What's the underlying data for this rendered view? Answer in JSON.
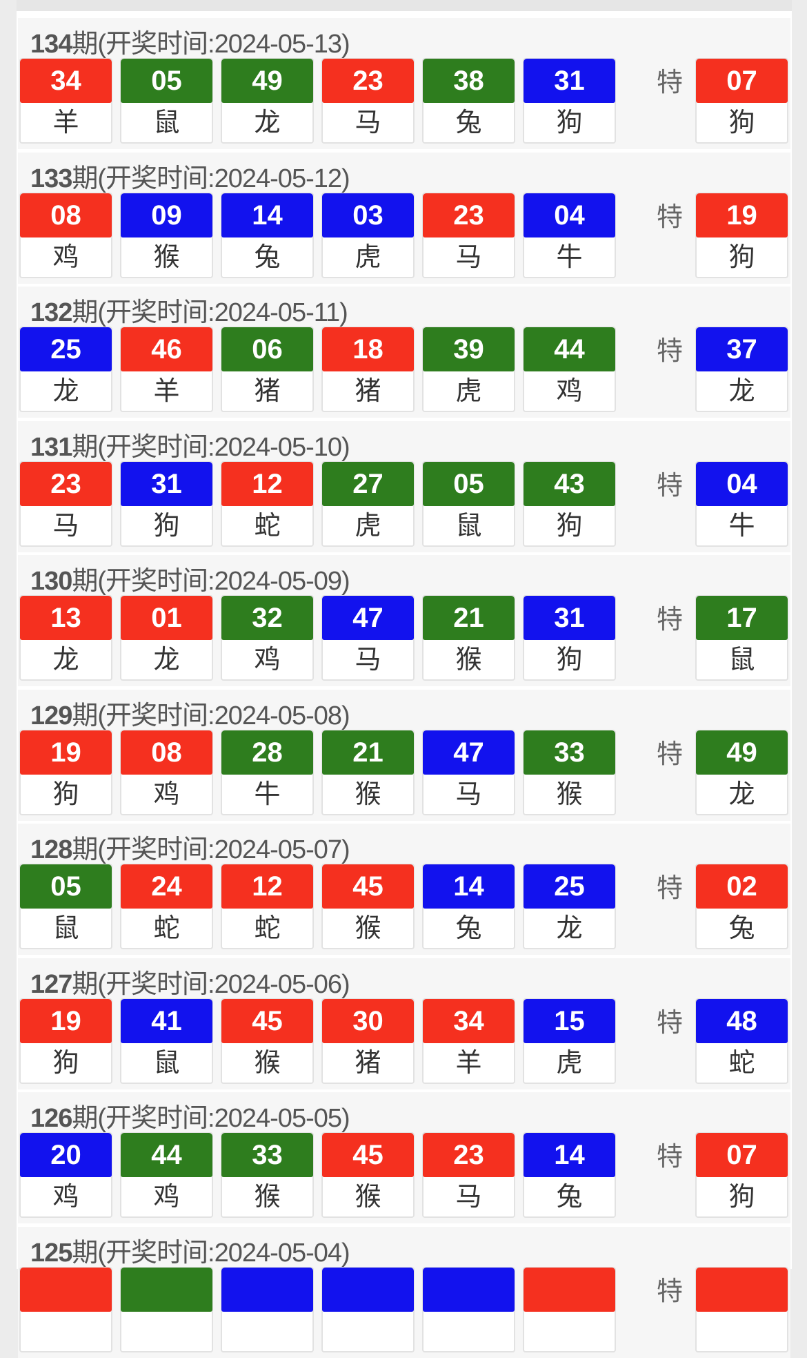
{
  "special_label": "特",
  "colors": {
    "red": "#f5301f",
    "green": "#2e7d1e",
    "blue": "#1212ee"
  },
  "draws": [
    {
      "issue": "134",
      "suffix": "期(开奖时间:2024-05-13)",
      "balls": [
        [
          "34",
          "羊",
          "red"
        ],
        [
          "05",
          "鼠",
          "green"
        ],
        [
          "49",
          "龙",
          "green"
        ],
        [
          "23",
          "马",
          "red"
        ],
        [
          "38",
          "兔",
          "green"
        ],
        [
          "31",
          "狗",
          "blue"
        ]
      ],
      "special": [
        "07",
        "狗",
        "red"
      ]
    },
    {
      "issue": "133",
      "suffix": "期(开奖时间:2024-05-12)",
      "balls": [
        [
          "08",
          "鸡",
          "red"
        ],
        [
          "09",
          "猴",
          "blue"
        ],
        [
          "14",
          "兔",
          "blue"
        ],
        [
          "03",
          "虎",
          "blue"
        ],
        [
          "23",
          "马",
          "red"
        ],
        [
          "04",
          "牛",
          "blue"
        ]
      ],
      "special": [
        "19",
        "狗",
        "red"
      ]
    },
    {
      "issue": "132",
      "suffix": "期(开奖时间:2024-05-11)",
      "balls": [
        [
          "25",
          "龙",
          "blue"
        ],
        [
          "46",
          "羊",
          "red"
        ],
        [
          "06",
          "猪",
          "green"
        ],
        [
          "18",
          "猪",
          "red"
        ],
        [
          "39",
          "虎",
          "green"
        ],
        [
          "44",
          "鸡",
          "green"
        ]
      ],
      "special": [
        "37",
        "龙",
        "blue"
      ]
    },
    {
      "issue": "131",
      "suffix": "期(开奖时间:2024-05-10)",
      "balls": [
        [
          "23",
          "马",
          "red"
        ],
        [
          "31",
          "狗",
          "blue"
        ],
        [
          "12",
          "蛇",
          "red"
        ],
        [
          "27",
          "虎",
          "green"
        ],
        [
          "05",
          "鼠",
          "green"
        ],
        [
          "43",
          "狗",
          "green"
        ]
      ],
      "special": [
        "04",
        "牛",
        "blue"
      ]
    },
    {
      "issue": "130",
      "suffix": "期(开奖时间:2024-05-09)",
      "balls": [
        [
          "13",
          "龙",
          "red"
        ],
        [
          "01",
          "龙",
          "red"
        ],
        [
          "32",
          "鸡",
          "green"
        ],
        [
          "47",
          "马",
          "blue"
        ],
        [
          "21",
          "猴",
          "green"
        ],
        [
          "31",
          "狗",
          "blue"
        ]
      ],
      "special": [
        "17",
        "鼠",
        "green"
      ]
    },
    {
      "issue": "129",
      "suffix": "期(开奖时间:2024-05-08)",
      "balls": [
        [
          "19",
          "狗",
          "red"
        ],
        [
          "08",
          "鸡",
          "red"
        ],
        [
          "28",
          "牛",
          "green"
        ],
        [
          "21",
          "猴",
          "green"
        ],
        [
          "47",
          "马",
          "blue"
        ],
        [
          "33",
          "猴",
          "green"
        ]
      ],
      "special": [
        "49",
        "龙",
        "green"
      ]
    },
    {
      "issue": "128",
      "suffix": "期(开奖时间:2024-05-07)",
      "balls": [
        [
          "05",
          "鼠",
          "green"
        ],
        [
          "24",
          "蛇",
          "red"
        ],
        [
          "12",
          "蛇",
          "red"
        ],
        [
          "45",
          "猴",
          "red"
        ],
        [
          "14",
          "兔",
          "blue"
        ],
        [
          "25",
          "龙",
          "blue"
        ]
      ],
      "special": [
        "02",
        "兔",
        "red"
      ]
    },
    {
      "issue": "127",
      "suffix": "期(开奖时间:2024-05-06)",
      "balls": [
        [
          "19",
          "狗",
          "red"
        ],
        [
          "41",
          "鼠",
          "blue"
        ],
        [
          "45",
          "猴",
          "red"
        ],
        [
          "30",
          "猪",
          "red"
        ],
        [
          "34",
          "羊",
          "red"
        ],
        [
          "15",
          "虎",
          "blue"
        ]
      ],
      "special": [
        "48",
        "蛇",
        "blue"
      ]
    },
    {
      "issue": "126",
      "suffix": "期(开奖时间:2024-05-05)",
      "balls": [
        [
          "20",
          "鸡",
          "blue"
        ],
        [
          "44",
          "鸡",
          "green"
        ],
        [
          "33",
          "猴",
          "green"
        ],
        [
          "45",
          "猴",
          "red"
        ],
        [
          "23",
          "马",
          "red"
        ],
        [
          "14",
          "兔",
          "blue"
        ]
      ],
      "special": [
        "07",
        "狗",
        "red"
      ]
    },
    {
      "issue": "125",
      "suffix": "期(开奖时间:2024-05-04)",
      "balls": [
        [
          "",
          "",
          "red"
        ],
        [
          "",
          "",
          "green"
        ],
        [
          "",
          "",
          "blue"
        ],
        [
          "",
          "",
          "blue"
        ],
        [
          "",
          "",
          "blue"
        ],
        [
          "",
          "",
          "red"
        ]
      ],
      "special": [
        "",
        "",
        "red"
      ]
    }
  ]
}
